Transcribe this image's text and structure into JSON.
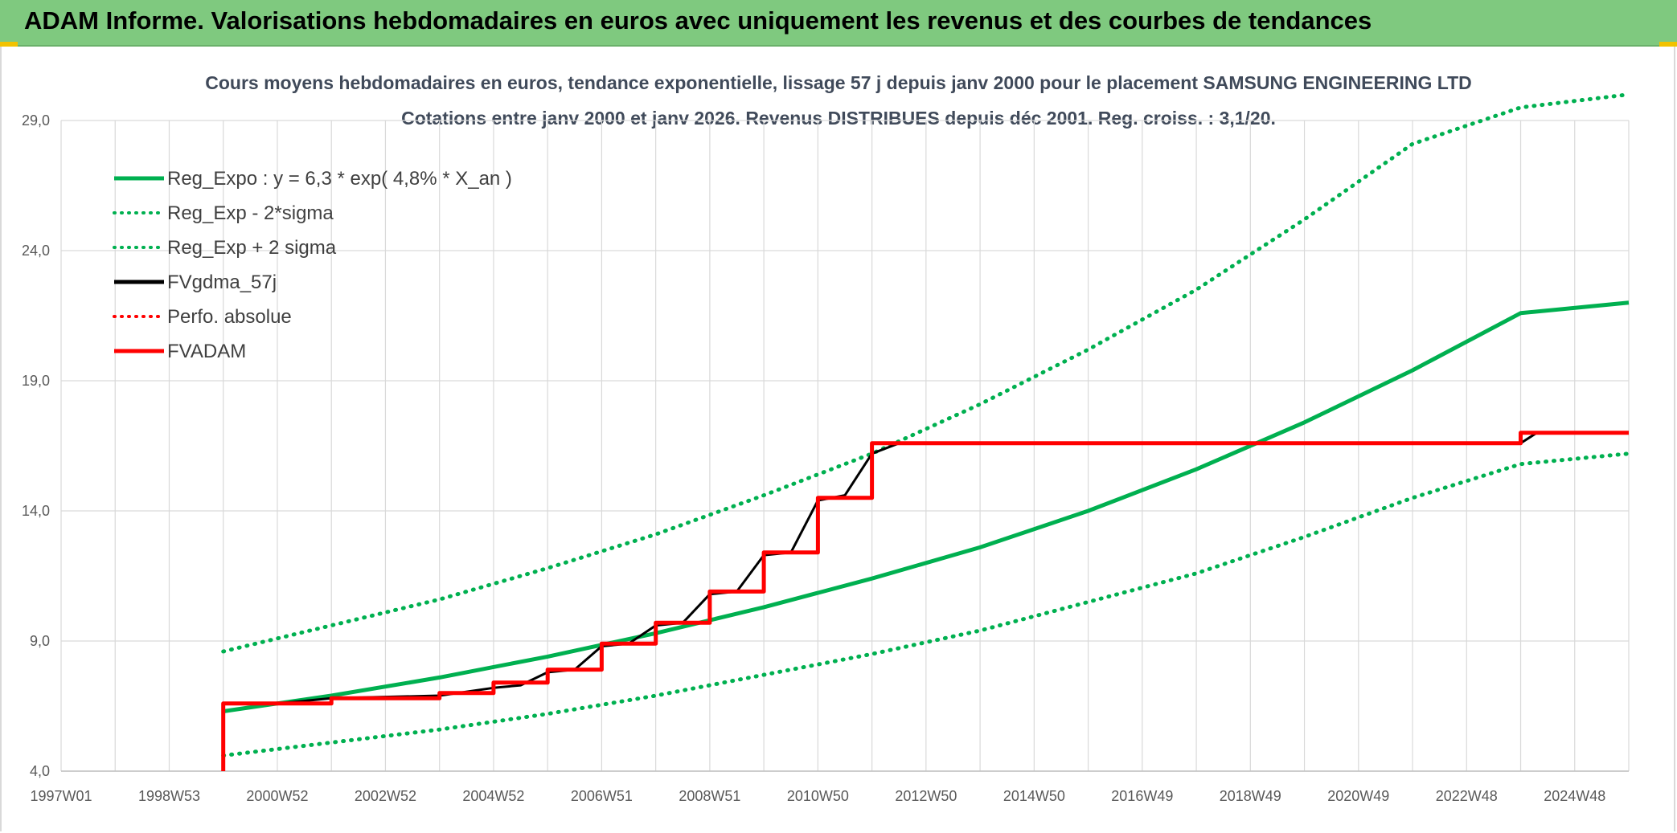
{
  "header": {
    "title": "ADAM Informe. Valorisations hebdomadaires en euros avec uniquement les revenus et des courbes de tendances"
  },
  "chart_data": {
    "type": "line",
    "title": "Cours moyens hebdomadaires en euros, tendance exponentielle, lissage 57 j depuis janv 2000 pour le placement SAMSUNG ENGINEERING LTD",
    "subtitle": "Cotations entre janv 2000 et janv 2026. Revenus DISTRIBUES depuis déc 2001. Reg. croiss. : 3,1/20.",
    "x_tick_labels": [
      "1997W01",
      "1998W53",
      "2000W52",
      "2002W52",
      "2004W52",
      "2006W51",
      "2008W51",
      "2010W50",
      "2012W50",
      "2014W50",
      "2016W49",
      "2018W49",
      "2020W49",
      "2022W48",
      "2024W48"
    ],
    "y_tick_labels": [
      "4,0",
      "9,0",
      "14,0",
      "19,0",
      "24,0",
      "29,0"
    ],
    "xlim": [
      1997.0,
      2026.0
    ],
    "ylim": [
      4.0,
      29.0
    ],
    "grid": true,
    "legend_position": "top-left",
    "series": [
      {
        "name": "Reg_Expo : y = 6,3 * exp( 4,8% *  X_an )",
        "color": "#00b050",
        "style": "solid",
        "x": [
          2000.0,
          2002.0,
          2004.0,
          2006.0,
          2008.0,
          2010.0,
          2012.0,
          2014.0,
          2016.0,
          2018.0,
          2020.0,
          2022.0,
          2024.0,
          2026.0
        ],
        "y": [
          6.3,
          6.9,
          7.6,
          8.4,
          9.3,
          10.3,
          11.4,
          12.6,
          14.0,
          15.6,
          17.4,
          19.4,
          21.6,
          22.0
        ]
      },
      {
        "name": "Reg_Exp - 2*sigma",
        "color": "#00b050",
        "style": "dotted",
        "x": [
          2000.0,
          2002.0,
          2004.0,
          2006.0,
          2008.0,
          2010.0,
          2012.0,
          2014.0,
          2016.0,
          2018.0,
          2020.0,
          2022.0,
          2024.0,
          2026.0
        ],
        "y": [
          4.6,
          5.1,
          5.6,
          6.2,
          6.9,
          7.7,
          8.5,
          9.4,
          10.5,
          11.6,
          13.0,
          14.5,
          15.8,
          16.2
        ]
      },
      {
        "name": "Reg_Exp + 2 sigma",
        "color": "#00b050",
        "style": "dotted",
        "x": [
          2000.0,
          2002.0,
          2004.0,
          2006.0,
          2008.0,
          2010.0,
          2012.0,
          2014.0,
          2016.0,
          2018.0,
          2020.0,
          2022.0,
          2024.0,
          2026.0
        ],
        "y": [
          8.6,
          9.6,
          10.6,
          11.8,
          13.1,
          14.6,
          16.2,
          18.1,
          20.2,
          22.5,
          25.2,
          28.1,
          29.5,
          30.0
        ]
      },
      {
        "name": "FVgdma_57j",
        "color": "#000000",
        "style": "solid",
        "x": [
          2000.0,
          2000.0,
          2001.0,
          2002.0,
          2004.0,
          2005.0,
          2005.5,
          2006.0,
          2006.5,
          2007.0,
          2007.5,
          2008.0,
          2008.5,
          2009.0,
          2009.5,
          2010.0,
          2010.5,
          2011.0,
          2011.5,
          2012.0,
          2012.5,
          2013.0,
          2024.0,
          2024.3,
          2026.0
        ],
        "y": [
          4.0,
          6.6,
          6.6,
          6.8,
          6.9,
          7.2,
          7.3,
          7.8,
          7.9,
          8.8,
          8.9,
          9.6,
          9.7,
          10.8,
          10.9,
          12.3,
          12.4,
          14.4,
          14.6,
          16.2,
          16.6,
          16.6,
          16.6,
          17.0,
          17.0
        ]
      },
      {
        "name": "Perfo. absolue",
        "color": "#ff0000",
        "style": "dotted",
        "x": [],
        "y": []
      },
      {
        "name": "FVADAM",
        "color": "#ff0000",
        "style": "solid",
        "x": [
          2000.0,
          2000.0,
          2002.0,
          2002.0,
          2004.0,
          2004.0,
          2005.0,
          2005.0,
          2006.0,
          2006.0,
          2007.0,
          2007.0,
          2008.0,
          2008.0,
          2009.0,
          2009.0,
          2010.0,
          2010.0,
          2011.0,
          2011.0,
          2012.0,
          2012.0,
          2024.0,
          2024.0,
          2026.0
        ],
        "y": [
          4.0,
          6.6,
          6.6,
          6.8,
          6.8,
          7.0,
          7.0,
          7.4,
          7.4,
          7.9,
          7.9,
          8.9,
          8.9,
          9.7,
          9.7,
          10.9,
          10.9,
          12.4,
          12.4,
          14.5,
          14.5,
          16.6,
          16.6,
          17.0,
          17.0
        ]
      }
    ]
  }
}
